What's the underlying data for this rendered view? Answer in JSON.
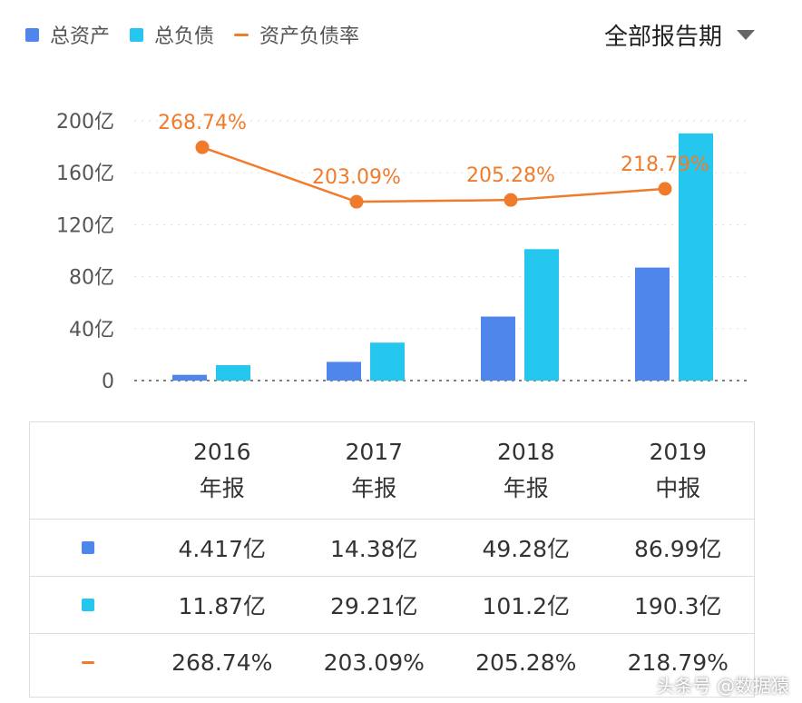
{
  "legend": [
    {
      "label": "总资产",
      "color": "#4f86ec",
      "shape": "square"
    },
    {
      "label": "总负债",
      "color": "#26c7ee",
      "shape": "square"
    },
    {
      "label": "资产负债率",
      "color": "#f07b2c",
      "shape": "line"
    }
  ],
  "period_selector": {
    "label": "全部报告期",
    "icon": "caret-down-icon"
  },
  "chart_data": {
    "type": "bar",
    "categories": [
      "2016年报",
      "2017年报",
      "2018年报",
      "2019中报"
    ],
    "series": [
      {
        "name": "总资产",
        "type": "bar",
        "color": "#4f86ec",
        "values": [
          4.417,
          14.38,
          49.28,
          86.99
        ]
      },
      {
        "name": "总负债",
        "type": "bar",
        "color": "#26c7ee",
        "values": [
          11.87,
          29.21,
          101.2,
          190.3
        ]
      },
      {
        "name": "资产负债率",
        "type": "line",
        "color": "#f07b2c",
        "values": [
          268.74,
          203.09,
          205.28,
          218.79
        ],
        "labels": [
          "268.74%",
          "203.09%",
          "205.28%",
          "218.79%"
        ]
      }
    ],
    "y_ticks": [
      {
        "value": 0,
        "label": "0"
      },
      {
        "value": 40,
        "label": "40亿"
      },
      {
        "value": 80,
        "label": "80亿"
      },
      {
        "value": 120,
        "label": "120亿"
      },
      {
        "value": 160,
        "label": "160亿"
      },
      {
        "value": 200,
        "label": "200亿"
      }
    ],
    "ylim": [
      0,
      200
    ],
    "rate_range": [
      200,
      270
    ],
    "grid": true,
    "legend_position": "top-left"
  },
  "table": {
    "columns": [
      {
        "year": "2016",
        "type": "年报"
      },
      {
        "year": "2017",
        "type": "年报"
      },
      {
        "year": "2018",
        "type": "年报"
      },
      {
        "year": "2019",
        "type": "中报"
      }
    ],
    "rows": [
      {
        "indicator": "square",
        "color": "#4f86ec",
        "values": [
          "4.417亿",
          "14.38亿",
          "49.28亿",
          "86.99亿"
        ]
      },
      {
        "indicator": "square",
        "color": "#26c7ee",
        "values": [
          "11.87亿",
          "29.21亿",
          "101.2亿",
          "190.3亿"
        ]
      },
      {
        "indicator": "line",
        "color": "#f07b2c",
        "values": [
          "268.74%",
          "203.09%",
          "205.28%",
          "218.79%"
        ]
      }
    ]
  },
  "watermark": "头条号 @数据猿"
}
